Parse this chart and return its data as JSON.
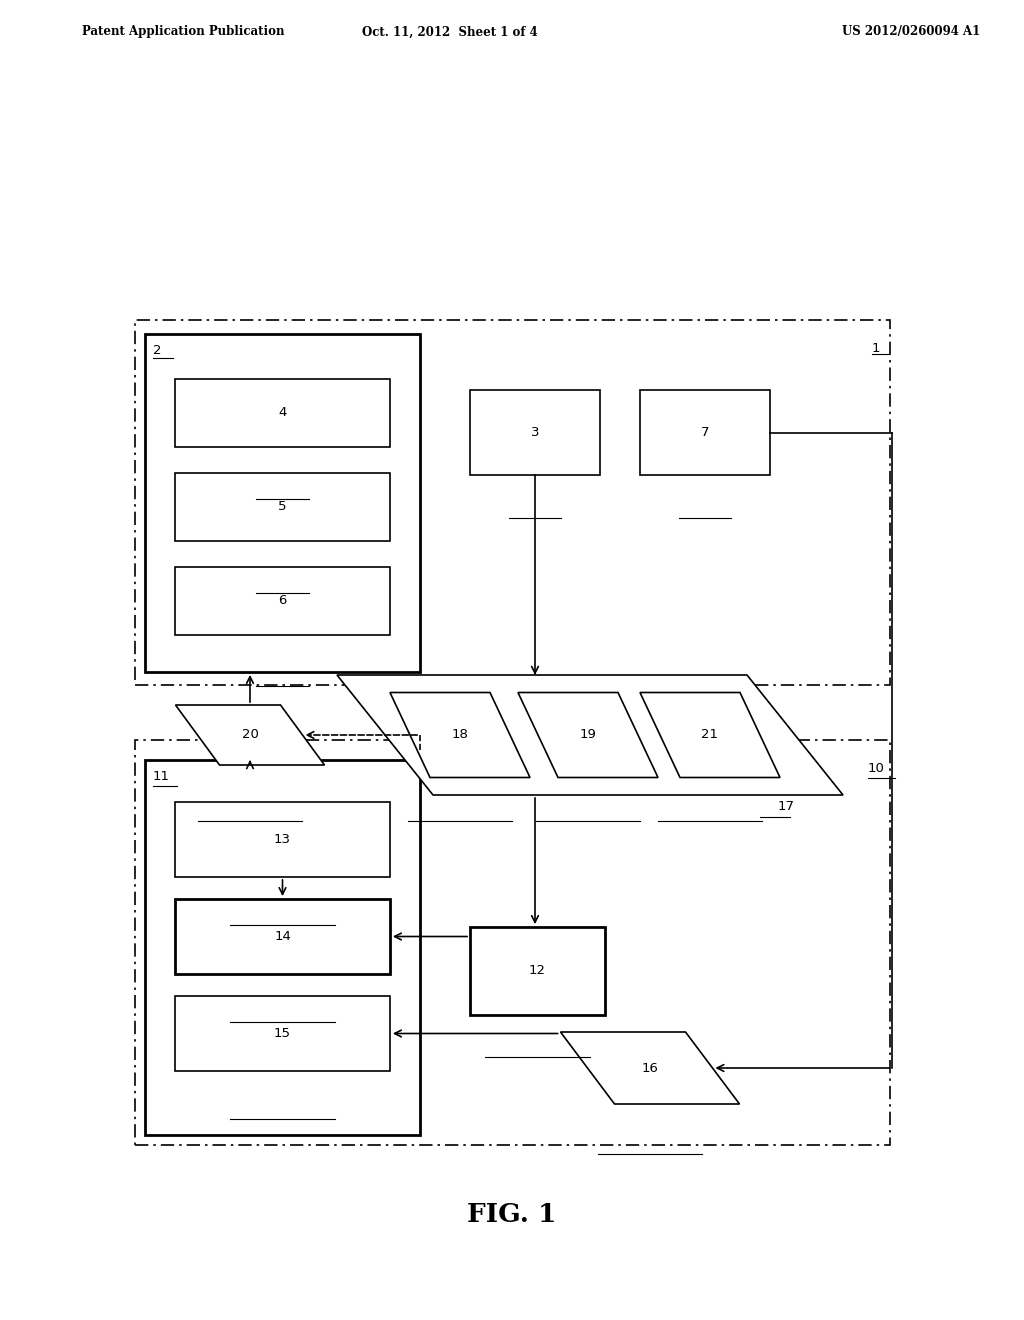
{
  "bg_color": "#ffffff",
  "header_left": "Patent Application Publication",
  "header_center": "Oct. 11, 2012  Sheet 1 of 4",
  "header_right": "US 2012/0260094 A1",
  "fig_label": "FIG. 1"
}
